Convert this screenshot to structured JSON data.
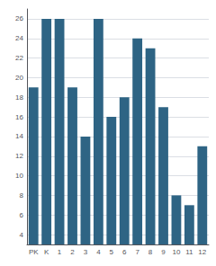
{
  "chart_data": {
    "type": "bar",
    "categories": [
      "PK",
      "K",
      "1",
      "2",
      "3",
      "4",
      "5",
      "6",
      "7",
      "8",
      "9",
      "10",
      "11",
      "12"
    ],
    "values": [
      19,
      26,
      26,
      19,
      14,
      26,
      16,
      18,
      24,
      23,
      17,
      8,
      7,
      13
    ],
    "color": "#2e6484",
    "ylim": [
      3,
      27
    ],
    "yticks": [
      4,
      6,
      8,
      10,
      12,
      14,
      16,
      18,
      20,
      22,
      24,
      26
    ],
    "grid": true
  }
}
